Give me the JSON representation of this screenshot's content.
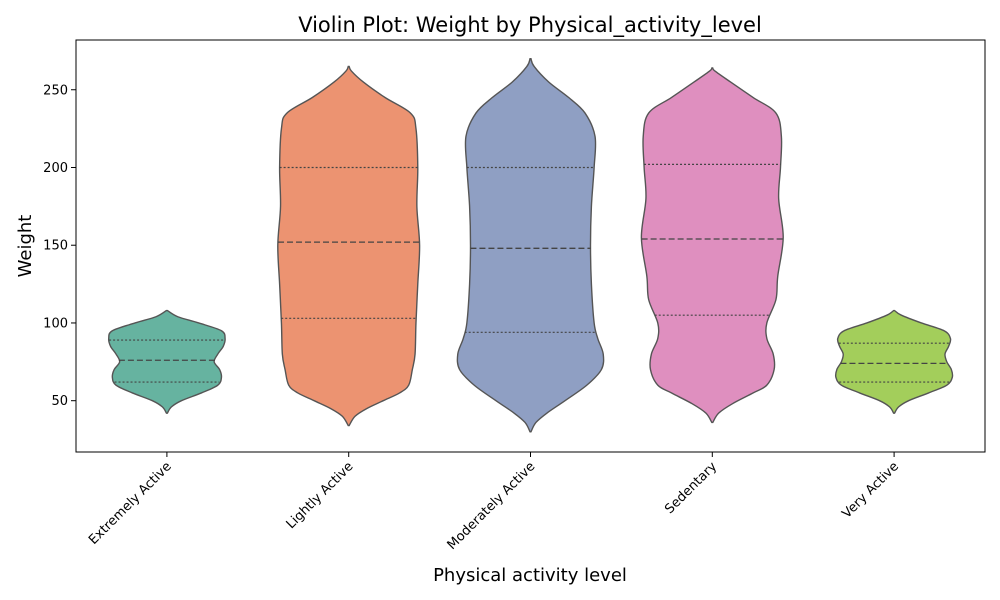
{
  "chart_data": {
    "type": "violin",
    "title": "Violin Plot: Weight by Physical_activity_level",
    "xlabel": "Physical activity level",
    "ylabel": "Weight",
    "ylim": [
      17,
      282
    ],
    "yticks": [
      50,
      100,
      150,
      200,
      250
    ],
    "grid": false,
    "categories": [
      "Extremely Active",
      "Lightly Active",
      "Moderately Active",
      "Sedentary",
      "Very Active"
    ],
    "colors": [
      "#66b3a0",
      "#ec9371",
      "#8f9fc3",
      "#df8fbf",
      "#a3ce5b"
    ],
    "series": [
      {
        "category": "Extremely Active",
        "quartiles": [
          62,
          76,
          89
        ],
        "profile": [
          [
            42,
            0.005
          ],
          [
            46,
            0.05
          ],
          [
            50,
            0.16
          ],
          [
            55,
            0.38
          ],
          [
            60,
            0.56
          ],
          [
            65,
            0.6
          ],
          [
            70,
            0.58
          ],
          [
            75,
            0.52
          ],
          [
            80,
            0.56
          ],
          [
            85,
            0.62
          ],
          [
            90,
            0.64
          ],
          [
            95,
            0.6
          ],
          [
            100,
            0.35
          ],
          [
            104,
            0.12
          ],
          [
            108,
            0.005
          ]
        ]
      },
      {
        "category": "Lightly Active",
        "quartiles": [
          103,
          152,
          200
        ],
        "profile": [
          [
            34,
            0.005
          ],
          [
            40,
            0.07
          ],
          [
            45,
            0.2
          ],
          [
            50,
            0.38
          ],
          [
            55,
            0.56
          ],
          [
            60,
            0.66
          ],
          [
            70,
            0.7
          ],
          [
            80,
            0.73
          ],
          [
            100,
            0.74
          ],
          [
            125,
            0.76
          ],
          [
            150,
            0.78
          ],
          [
            175,
            0.75
          ],
          [
            200,
            0.76
          ],
          [
            225,
            0.74
          ],
          [
            235,
            0.68
          ],
          [
            245,
            0.4
          ],
          [
            255,
            0.16
          ],
          [
            262,
            0.03
          ],
          [
            265,
            0.005
          ]
        ]
      },
      {
        "category": "Moderately Active",
        "quartiles": [
          94,
          148,
          200
        ],
        "profile": [
          [
            30,
            0.005
          ],
          [
            36,
            0.06
          ],
          [
            42,
            0.18
          ],
          [
            50,
            0.38
          ],
          [
            60,
            0.62
          ],
          [
            70,
            0.78
          ],
          [
            80,
            0.8
          ],
          [
            90,
            0.74
          ],
          [
            100,
            0.7
          ],
          [
            125,
            0.67
          ],
          [
            150,
            0.66
          ],
          [
            175,
            0.67
          ],
          [
            200,
            0.7
          ],
          [
            220,
            0.71
          ],
          [
            235,
            0.6
          ],
          [
            245,
            0.42
          ],
          [
            255,
            0.2
          ],
          [
            265,
            0.04
          ],
          [
            270,
            0.005
          ]
        ]
      },
      {
        "category": "Sedentary",
        "quartiles": [
          105,
          154,
          202
        ],
        "profile": [
          [
            36,
            0.005
          ],
          [
            42,
            0.07
          ],
          [
            48,
            0.22
          ],
          [
            55,
            0.45
          ],
          [
            60,
            0.6
          ],
          [
            70,
            0.68
          ],
          [
            80,
            0.67
          ],
          [
            90,
            0.6
          ],
          [
            100,
            0.6
          ],
          [
            115,
            0.7
          ],
          [
            130,
            0.72
          ],
          [
            155,
            0.78
          ],
          [
            180,
            0.73
          ],
          [
            200,
            0.75
          ],
          [
            220,
            0.76
          ],
          [
            235,
            0.7
          ],
          [
            245,
            0.45
          ],
          [
            255,
            0.2
          ],
          [
            262,
            0.03
          ],
          [
            264,
            0.005
          ]
        ]
      },
      {
        "category": "Very Active",
        "quartiles": [
          62,
          74,
          87
        ],
        "profile": [
          [
            42,
            0.005
          ],
          [
            46,
            0.05
          ],
          [
            50,
            0.16
          ],
          [
            55,
            0.38
          ],
          [
            60,
            0.58
          ],
          [
            65,
            0.64
          ],
          [
            70,
            0.63
          ],
          [
            75,
            0.58
          ],
          [
            80,
            0.56
          ],
          [
            85,
            0.6
          ],
          [
            90,
            0.62
          ],
          [
            95,
            0.55
          ],
          [
            100,
            0.3
          ],
          [
            105,
            0.08
          ],
          [
            108,
            0.005
          ]
        ]
      }
    ]
  }
}
